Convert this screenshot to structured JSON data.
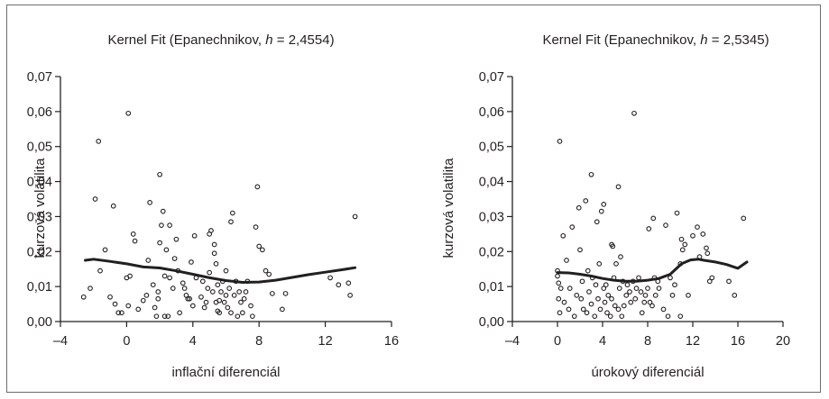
{
  "chart_data": [
    {
      "type": "scatter",
      "title": "Kernel Fit (Epanechnikov, h = 2,4554)",
      "title_parts": [
        "Kernel Fit (Epanechnikov, ",
        "h",
        " = 2,4554)"
      ],
      "xlabel": "inflační diferenciál",
      "ylabel": "kurzová volatilita",
      "xlim": [
        -4,
        16
      ],
      "ylim": [
        0,
        0.07
      ],
      "xticks": [
        -4,
        0,
        4,
        8,
        12,
        16
      ],
      "xtick_labels": [
        "–4",
        "0",
        "4",
        "8",
        "12",
        "16"
      ],
      "yticks": [
        0,
        0.01,
        0.02,
        0.03,
        0.04,
        0.05,
        0.06,
        0.07
      ],
      "ytick_labels": [
        "0,00",
        "0,01",
        "0,02",
        "0,03",
        "0,04",
        "0,05",
        "0,06",
        "0,07"
      ],
      "grid": false,
      "series": [
        {
          "kind": "points",
          "points": [
            [
              -2.6,
              0.007
            ],
            [
              -2.2,
              0.0095
            ],
            [
              -1.9,
              0.035
            ],
            [
              -1.7,
              0.0515
            ],
            [
              -1.6,
              0.0145
            ],
            [
              -1.3,
              0.0205
            ],
            [
              -1.0,
              0.007
            ],
            [
              -0.8,
              0.033
            ],
            [
              -0.7,
              0.005
            ],
            [
              -0.5,
              0.0025
            ],
            [
              -0.3,
              0.0025
            ],
            [
              0.1,
              0.0045
            ],
            [
              0.0,
              0.0125
            ],
            [
              0.1,
              0.0595
            ],
            [
              0.2,
              0.013
            ],
            [
              0.4,
              0.025
            ],
            [
              0.5,
              0.023
            ],
            [
              0.7,
              0.0035
            ],
            [
              1.0,
              0.006
            ],
            [
              1.2,
              0.0075
            ],
            [
              1.3,
              0.0175
            ],
            [
              1.4,
              0.034
            ],
            [
              1.6,
              0.0105
            ],
            [
              1.7,
              0.004
            ],
            [
              1.8,
              0.0015
            ],
            [
              1.9,
              0.0085
            ],
            [
              1.9,
              0.0065
            ],
            [
              2.0,
              0.0225
            ],
            [
              2.0,
              0.042
            ],
            [
              2.1,
              0.0275
            ],
            [
              2.2,
              0.0315
            ],
            [
              2.3,
              0.013
            ],
            [
              2.3,
              0.0015
            ],
            [
              2.4,
              0.0205
            ],
            [
              2.5,
              0.0015
            ],
            [
              2.6,
              0.0125
            ],
            [
              2.6,
              0.0275
            ],
            [
              2.8,
              0.0095
            ],
            [
              2.9,
              0.018
            ],
            [
              3.0,
              0.0235
            ],
            [
              3.1,
              0.0145
            ],
            [
              3.2,
              0.0025
            ],
            [
              3.4,
              0.011
            ],
            [
              3.5,
              0.0095
            ],
            [
              3.6,
              0.0075
            ],
            [
              3.7,
              0.0065
            ],
            [
              3.8,
              0.0065
            ],
            [
              3.9,
              0.017
            ],
            [
              4.0,
              0.0045
            ],
            [
              4.1,
              0.0245
            ],
            [
              4.2,
              0.0125
            ],
            [
              4.5,
              0.007
            ],
            [
              4.6,
              0.0115
            ],
            [
              4.7,
              0.004
            ],
            [
              4.8,
              0.0055
            ],
            [
              4.9,
              0.0095
            ],
            [
              5.0,
              0.025
            ],
            [
              5.0,
              0.014
            ],
            [
              5.1,
              0.026
            ],
            [
              5.2,
              0.0085
            ],
            [
              5.3,
              0.022
            ],
            [
              5.3,
              0.0195
            ],
            [
              5.4,
              0.0165
            ],
            [
              5.4,
              0.0055
            ],
            [
              5.5,
              0.003
            ],
            [
              5.5,
              0.0105
            ],
            [
              5.6,
              0.0025
            ],
            [
              5.6,
              0.006
            ],
            [
              5.7,
              0.0085
            ],
            [
              5.8,
              0.0115
            ],
            [
              5.9,
              0.0055
            ],
            [
              6.0,
              0.0145
            ],
            [
              6.0,
              0.0075
            ],
            [
              6.1,
              0.004
            ],
            [
              6.2,
              0.0095
            ],
            [
              6.3,
              0.0025
            ],
            [
              6.3,
              0.0285
            ],
            [
              6.4,
              0.031
            ],
            [
              6.5,
              0.0075
            ],
            [
              6.6,
              0.0115
            ],
            [
              6.7,
              0.0015
            ],
            [
              6.8,
              0.0085
            ],
            [
              6.9,
              0.0055
            ],
            [
              7.0,
              0.0025
            ],
            [
              7.1,
              0.0065
            ],
            [
              7.2,
              0.0085
            ],
            [
              7.3,
              0.0115
            ],
            [
              7.5,
              0.0045
            ],
            [
              7.6,
              0.0015
            ],
            [
              7.8,
              0.027
            ],
            [
              7.9,
              0.0385
            ],
            [
              8.0,
              0.0215
            ],
            [
              8.2,
              0.0205
            ],
            [
              8.4,
              0.0145
            ],
            [
              8.6,
              0.0135
            ],
            [
              8.8,
              0.008
            ],
            [
              9.4,
              0.0035
            ],
            [
              9.6,
              0.008
            ],
            [
              12.3,
              0.0125
            ],
            [
              12.8,
              0.0105
            ],
            [
              13.4,
              0.011
            ],
            [
              13.5,
              0.0075
            ],
            [
              13.8,
              0.03
            ]
          ]
        },
        {
          "kind": "line",
          "name": "",
          "points": [
            [
              -2.5,
              0.0175
            ],
            [
              -2.0,
              0.0178
            ],
            [
              -1.0,
              0.0172
            ],
            [
              0.0,
              0.0165
            ],
            [
              1.0,
              0.0156
            ],
            [
              2.0,
              0.0153
            ],
            [
              3.0,
              0.0145
            ],
            [
              4.0,
              0.0135
            ],
            [
              5.0,
              0.0125
            ],
            [
              6.0,
              0.0117
            ],
            [
              7.0,
              0.0112
            ],
            [
              8.0,
              0.0113
            ],
            [
              9.0,
              0.0118
            ],
            [
              10.0,
              0.0126
            ],
            [
              11.0,
              0.0134
            ],
            [
              12.0,
              0.0141
            ],
            [
              13.0,
              0.0148
            ],
            [
              13.8,
              0.0154
            ]
          ]
        }
      ]
    },
    {
      "type": "scatter",
      "title": "Kernel Fit (Epanechnikov, h = 2,5345)",
      "title_parts": [
        "Kernel Fit (Epanechnikov, ",
        "h",
        " = 2,5345)"
      ],
      "xlabel": "úrokový diferenciál",
      "ylabel": "kurzová volatilita",
      "xlim": [
        -4,
        20
      ],
      "ylim": [
        0,
        0.07
      ],
      "xticks": [
        -4,
        0,
        4,
        8,
        12,
        16,
        20
      ],
      "xtick_labels": [
        "–4",
        "0",
        "4",
        "8",
        "12",
        "16",
        "20"
      ],
      "yticks": [
        0,
        0.01,
        0.02,
        0.03,
        0.04,
        0.05,
        0.06,
        0.07
      ],
      "ytick_labels": [
        "0,00",
        "0,01",
        "0,02",
        "0,03",
        "0,04",
        "0,05",
        "0,06",
        "0,07"
      ],
      "grid": false,
      "series": [
        {
          "kind": "points",
          "points": [
            [
              0.0,
              0.0145
            ],
            [
              0.0,
              0.013
            ],
            [
              0.1,
              0.011
            ],
            [
              0.1,
              0.0065
            ],
            [
              0.2,
              0.0025
            ],
            [
              0.2,
              0.0515
            ],
            [
              0.3,
              0.0095
            ],
            [
              0.5,
              0.0245
            ],
            [
              0.6,
              0.0055
            ],
            [
              0.8,
              0.0175
            ],
            [
              1.0,
              0.0035
            ],
            [
              1.1,
              0.0095
            ],
            [
              1.3,
              0.027
            ],
            [
              1.5,
              0.0015
            ],
            [
              1.7,
              0.0075
            ],
            [
              1.9,
              0.0325
            ],
            [
              2.0,
              0.0205
            ],
            [
              2.1,
              0.0065
            ],
            [
              2.2,
              0.0115
            ],
            [
              2.3,
              0.0035
            ],
            [
              2.5,
              0.0345
            ],
            [
              2.6,
              0.0025
            ],
            [
              2.7,
              0.0145
            ],
            [
              2.8,
              0.0085
            ],
            [
              3.0,
              0.042
            ],
            [
              3.0,
              0.005
            ],
            [
              3.1,
              0.0125
            ],
            [
              3.3,
              0.0015
            ],
            [
              3.4,
              0.0105
            ],
            [
              3.5,
              0.0285
            ],
            [
              3.6,
              0.0065
            ],
            [
              3.7,
              0.0165
            ],
            [
              3.8,
              0.0035
            ],
            [
              3.9,
              0.0315
            ],
            [
              4.1,
              0.0095
            ],
            [
              4.1,
              0.0335
            ],
            [
              4.2,
              0.0055
            ],
            [
              4.3,
              0.0105
            ],
            [
              4.4,
              0.0025
            ],
            [
              4.5,
              0.0075
            ],
            [
              4.7,
              0.0015
            ],
            [
              4.8,
              0.0065
            ],
            [
              4.8,
              0.022
            ],
            [
              4.9,
              0.0215
            ],
            [
              5.0,
              0.0125
            ],
            [
              5.1,
              0.0045
            ],
            [
              5.2,
              0.0165
            ],
            [
              5.4,
              0.0035
            ],
            [
              5.4,
              0.0385
            ],
            [
              5.5,
              0.0095
            ],
            [
              5.6,
              0.0185
            ],
            [
              5.7,
              0.0015
            ],
            [
              5.8,
              0.0115
            ],
            [
              5.9,
              0.0045
            ],
            [
              6.1,
              0.0075
            ],
            [
              6.2,
              0.0105
            ],
            [
              6.4,
              0.0085
            ],
            [
              6.5,
              0.0055
            ],
            [
              6.7,
              0.0115
            ],
            [
              6.8,
              0.0595
            ],
            [
              6.9,
              0.0065
            ],
            [
              7.0,
              0.0095
            ],
            [
              7.2,
              0.0125
            ],
            [
              7.4,
              0.0085
            ],
            [
              7.5,
              0.0025
            ],
            [
              7.7,
              0.0055
            ],
            [
              7.8,
              0.0075
            ],
            [
              8.0,
              0.0095
            ],
            [
              8.1,
              0.0265
            ],
            [
              8.2,
              0.0055
            ],
            [
              8.4,
              0.0045
            ],
            [
              8.5,
              0.0295
            ],
            [
              8.6,
              0.0125
            ],
            [
              8.7,
              0.0075
            ],
            [
              8.9,
              0.0115
            ],
            [
              9.0,
              0.0095
            ],
            [
              9.4,
              0.0035
            ],
            [
              9.6,
              0.0275
            ],
            [
              9.8,
              0.0015
            ],
            [
              10.0,
              0.0125
            ],
            [
              10.2,
              0.0075
            ],
            [
              10.4,
              0.0105
            ],
            [
              10.6,
              0.031
            ],
            [
              10.9,
              0.0015
            ],
            [
              10.9,
              0.0165
            ],
            [
              11.0,
              0.0235
            ],
            [
              11.1,
              0.0205
            ],
            [
              11.3,
              0.022
            ],
            [
              11.6,
              0.0075
            ],
            [
              12.0,
              0.0245
            ],
            [
              12.4,
              0.027
            ],
            [
              12.6,
              0.0185
            ],
            [
              12.9,
              0.025
            ],
            [
              13.2,
              0.021
            ],
            [
              13.3,
              0.0195
            ],
            [
              13.5,
              0.0115
            ],
            [
              13.7,
              0.0125
            ],
            [
              15.2,
              0.0115
            ],
            [
              15.7,
              0.0075
            ],
            [
              16.5,
              0.0295
            ]
          ]
        },
        {
          "kind": "line",
          "name": "",
          "points": [
            [
              0.0,
              0.014
            ],
            [
              1.0,
              0.0139
            ],
            [
              2.0,
              0.0135
            ],
            [
              3.0,
              0.013
            ],
            [
              4.0,
              0.0123
            ],
            [
              5.0,
              0.0118
            ],
            [
              6.0,
              0.0115
            ],
            [
              7.0,
              0.0115
            ],
            [
              8.0,
              0.0118
            ],
            [
              9.0,
              0.0123
            ],
            [
              10.0,
              0.0135
            ],
            [
              11.0,
              0.0165
            ],
            [
              11.8,
              0.0176
            ],
            [
              12.5,
              0.0178
            ],
            [
              13.0,
              0.0175
            ],
            [
              14.0,
              0.017
            ],
            [
              15.0,
              0.0163
            ],
            [
              16.0,
              0.0152
            ],
            [
              16.8,
              0.017
            ]
          ]
        }
      ]
    }
  ]
}
